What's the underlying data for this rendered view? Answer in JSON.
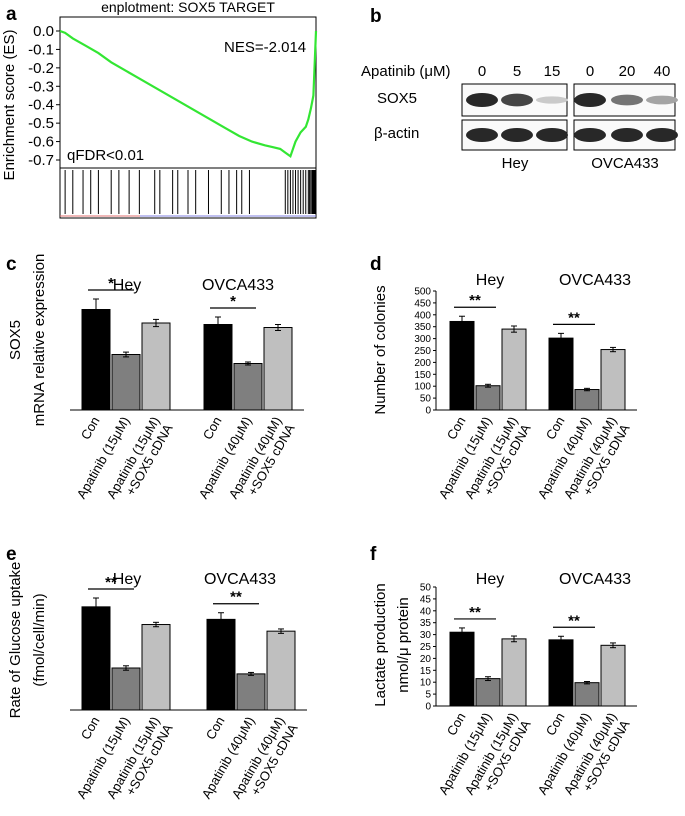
{
  "chart_data": [
    {
      "id": "a",
      "type": "line",
      "panel_label": "a",
      "title": "enplotment: SOX5 TARGET",
      "ylabel": "Enrichment score (ES)",
      "ylim": [
        -0.75,
        0.03
      ],
      "yticks": [
        0.0,
        -0.1,
        -0.2,
        -0.3,
        -0.4,
        -0.5,
        -0.6,
        -0.7
      ],
      "ytick_labels": [
        "0.0",
        "-0.1",
        "-0.2",
        "-0.3",
        "-0.4",
        "-0.5",
        "-0.6",
        "-0.7"
      ],
      "nes_label": "NES=-2.014",
      "fdr_label": "qFDR<0.01",
      "line_color": "#33e633",
      "x": [
        0,
        0.02,
        0.05,
        0.1,
        0.15,
        0.2,
        0.25,
        0.3,
        0.35,
        0.4,
        0.45,
        0.5,
        0.55,
        0.6,
        0.65,
        0.7,
        0.75,
        0.8,
        0.83,
        0.86,
        0.88,
        0.9,
        0.92,
        0.94,
        0.96,
        0.97,
        0.98,
        0.99,
        1.0
      ],
      "y": [
        0.0,
        -0.01,
        -0.04,
        -0.08,
        -0.12,
        -0.17,
        -0.21,
        -0.25,
        -0.29,
        -0.33,
        -0.37,
        -0.41,
        -0.45,
        -0.49,
        -0.53,
        -0.57,
        -0.6,
        -0.62,
        -0.63,
        -0.64,
        -0.66,
        -0.68,
        -0.6,
        -0.55,
        -0.52,
        -0.48,
        -0.42,
        -0.35,
        0.0
      ],
      "hits": [
        0.02,
        0.05,
        0.09,
        0.12,
        0.15,
        0.2,
        0.23,
        0.27,
        0.31,
        0.37,
        0.39,
        0.44,
        0.46,
        0.5,
        0.53,
        0.58,
        0.63,
        0.66,
        0.69,
        0.71,
        0.74,
        0.88,
        0.89,
        0.9,
        0.91,
        0.92,
        0.93,
        0.94,
        0.95,
        0.96,
        0.97,
        0.975,
        0.98,
        0.985,
        0.99,
        0.995
      ]
    },
    {
      "id": "c",
      "type": "bar",
      "panel_label": "c",
      "groups": [
        "Hey",
        "OVCA433"
      ],
      "categories": [
        [
          "Con",
          "Apatinib (15μM)",
          "Apatinib (15μM)\n+SOX5 cDNA"
        ],
        [
          "Con",
          "Apatinib (40μM)",
          "Apatinib (40μM)\n+SOX5 cDNA"
        ]
      ],
      "values": [
        [
          33.5,
          18.5,
          29
        ],
        [
          28.5,
          15.5,
          27.5
        ]
      ],
      "errors": [
        [
          3.5,
          0.8,
          1.2
        ],
        [
          2.5,
          0.5,
          1.0
        ]
      ],
      "significance": [
        {
          "group": 0,
          "label": "*"
        },
        {
          "group": 1,
          "label": "*"
        }
      ],
      "ylabel": [
        "SOX5",
        "mRNA relative expression"
      ],
      "ylim": [
        0,
        45
      ],
      "axis_visible": false,
      "colors": [
        "#000000",
        "#7f7f7f",
        "#bfbfbf"
      ]
    },
    {
      "id": "d",
      "type": "bar",
      "panel_label": "d",
      "groups": [
        "Hey",
        "OVCA433"
      ],
      "categories": [
        [
          "Con",
          "Apatinib (15μM)",
          "Apatinib (15μM)\n+SOX5 cDNA"
        ],
        [
          "Con",
          "Apatinib (40μM)",
          "Apatinib (40μM)\n+SOX5 cDNA"
        ]
      ],
      "values": [
        [
          372,
          102,
          340
        ],
        [
          302,
          86,
          254
        ]
      ],
      "errors": [
        [
          22,
          6,
          13
        ],
        [
          20,
          5,
          9
        ]
      ],
      "significance": [
        {
          "group": 0,
          "label": "**"
        },
        {
          "group": 1,
          "label": "**"
        }
      ],
      "ylabel": [
        "Number of colonies"
      ],
      "ylim": [
        0,
        500
      ],
      "yticks": [
        0,
        50,
        100,
        150,
        200,
        250,
        300,
        350,
        400,
        450,
        500
      ],
      "axis_visible": true,
      "colors": [
        "#000000",
        "#7f7f7f",
        "#bfbfbf"
      ]
    },
    {
      "id": "e",
      "type": "bar",
      "panel_label": "e",
      "groups": [
        "Hey",
        "OVCA433"
      ],
      "categories": [
        [
          "Con",
          "Apatinib (15μM)",
          "Apatinib (15μM)\n+SOX5 cDNA"
        ],
        [
          "Con",
          "Apatinib (40μM)",
          "Apatinib (40μM)\n+SOX5 cDNA"
        ]
      ],
      "values": [
        [
          1.4,
          0.57,
          1.16
        ],
        [
          1.23,
          0.49,
          1.07
        ]
      ],
      "errors": [
        [
          0.12,
          0.03,
          0.03
        ],
        [
          0.09,
          0.02,
          0.03
        ]
      ],
      "significance": [
        {
          "group": 0,
          "label": "**"
        },
        {
          "group": 1,
          "label": "**"
        }
      ],
      "ylabel": [
        "Rate of Glucose uptake",
        "(fmol/cell/min)"
      ],
      "ylim": [
        0,
        1.9
      ],
      "axis_visible": false,
      "colors": [
        "#000000",
        "#7f7f7f",
        "#bfbfbf"
      ]
    },
    {
      "id": "f",
      "type": "bar",
      "panel_label": "f",
      "groups": [
        "Hey",
        "OVCA433"
      ],
      "categories": [
        [
          "Con",
          "Apatinib (15μM)",
          "Apatinib (15μM)\n+SOX5 cDNA"
        ],
        [
          "Con",
          "Apatinib (40μM)",
          "Apatinib (40μM)\n+SOX5 cDNA"
        ]
      ],
      "values": [
        [
          31,
          11.5,
          28.2
        ],
        [
          27.8,
          9.8,
          25.5
        ]
      ],
      "errors": [
        [
          1.8,
          0.8,
          1.2
        ],
        [
          1.5,
          0.5,
          1.0
        ]
      ],
      "significance": [
        {
          "group": 0,
          "label": "**"
        },
        {
          "group": 1,
          "label": "**"
        }
      ],
      "ylabel": [
        "Lactate production",
        "nmol/μ protein"
      ],
      "ylim": [
        0,
        50
      ],
      "yticks": [
        0,
        5,
        10,
        15,
        20,
        25,
        30,
        35,
        40,
        45,
        50
      ],
      "axis_visible": true,
      "colors": [
        "#000000",
        "#7f7f7f",
        "#bfbfbf"
      ]
    }
  ],
  "blot": {
    "panel_label": "b",
    "treatment_label": "Apatinib (μM)",
    "doses_hey": [
      "0",
      "5",
      "15"
    ],
    "doses_ovca": [
      "0",
      "20",
      "40"
    ],
    "row_labels": [
      "SOX5",
      "β-actin"
    ],
    "cell_lines": [
      "Hey",
      "OVCA433"
    ],
    "sox5_intensity": [
      [
        1.0,
        0.85,
        0.15
      ],
      [
        1.0,
        0.6,
        0.35
      ]
    ],
    "actin_intensity": [
      [
        1.0,
        1.0,
        1.0
      ],
      [
        1.0,
        1.0,
        1.0
      ]
    ]
  }
}
